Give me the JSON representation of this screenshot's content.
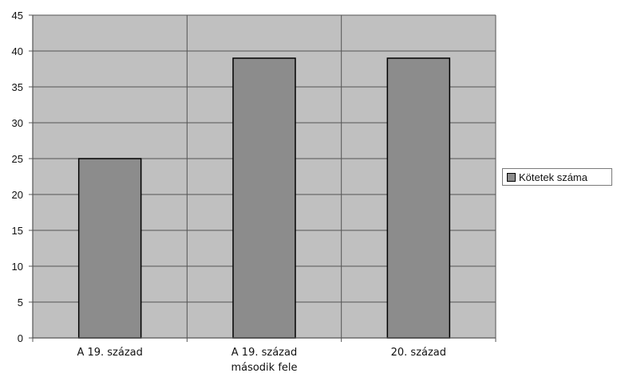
{
  "chart_data": {
    "type": "bar",
    "categories": [
      [
        "A 19. század"
      ],
      [
        "A 19. század",
        "második fele"
      ],
      [
        "20. század"
      ]
    ],
    "series": [
      {
        "name": "Kötetek száma",
        "values": [
          25,
          39,
          39
        ],
        "color": "#8c8c8c"
      }
    ],
    "yticks": [
      "0",
      "5",
      "10",
      "15",
      "20",
      "25",
      "30",
      "35",
      "40",
      "45"
    ],
    "ylim": [
      0,
      45
    ],
    "title": "",
    "xlabel": "",
    "ylabel": "",
    "grid": true,
    "legend_position": "right",
    "plot_background": "#c0c0c0"
  }
}
